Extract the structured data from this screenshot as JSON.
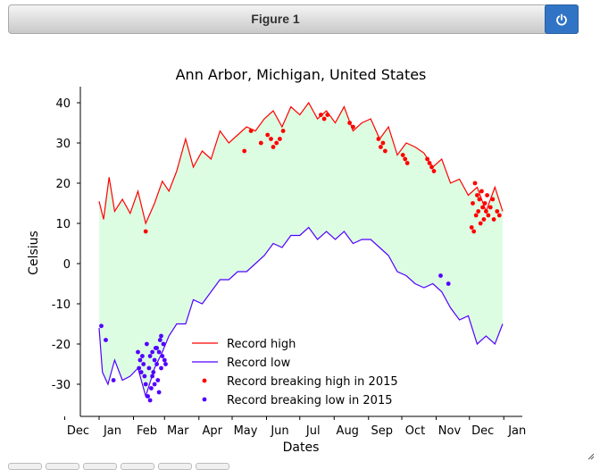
{
  "window": {
    "title": "Figure 1",
    "power_icon": "power-icon"
  },
  "chart_data": {
    "type": "line",
    "title": "Ann Arbor, Michigan, United States",
    "xlabel": "Dates",
    "ylabel": "Celsius",
    "ylim": [
      -38,
      44
    ],
    "x_domain": [
      "2015-01-01",
      "2015-12-31"
    ],
    "yticks": [
      -30,
      -20,
      -10,
      0,
      10,
      20,
      30,
      40
    ],
    "xticks": [
      "Dec",
      "Jan",
      "Feb",
      "Mar",
      "Apr",
      "May",
      "Jun",
      "Jul",
      "Aug",
      "Sep",
      "Oct",
      "Nov",
      "Dec",
      "Jan"
    ],
    "fill_color": "#ddfde3",
    "legend_position": "lower-center",
    "series": [
      {
        "name": "Record high",
        "kind": "line",
        "color": "#ff0000",
        "x": [
          "2015-01-01",
          "2015-01-05",
          "2015-01-10",
          "2015-01-15",
          "2015-01-22",
          "2015-01-29",
          "2015-02-05",
          "2015-02-12",
          "2015-02-20",
          "2015-02-27",
          "2015-03-05",
          "2015-03-12",
          "2015-03-20",
          "2015-03-27",
          "2015-04-04",
          "2015-04-12",
          "2015-04-20",
          "2015-04-28",
          "2015-05-06",
          "2015-05-14",
          "2015-05-22",
          "2015-05-30",
          "2015-06-07",
          "2015-06-15",
          "2015-06-23",
          "2015-07-01",
          "2015-07-09",
          "2015-07-17",
          "2015-07-25",
          "2015-08-02",
          "2015-08-10",
          "2015-08-18",
          "2015-08-26",
          "2015-09-03",
          "2015-09-11",
          "2015-09-19",
          "2015-09-27",
          "2015-10-05",
          "2015-10-13",
          "2015-10-21",
          "2015-10-29",
          "2015-11-06",
          "2015-11-14",
          "2015-11-22",
          "2015-11-30",
          "2015-12-08",
          "2015-12-16",
          "2015-12-24",
          "2015-12-31"
        ],
        "y": [
          15.5,
          11,
          21.5,
          13,
          16,
          12.5,
          18,
          10,
          15,
          20.5,
          18,
          23,
          31,
          24,
          28,
          26,
          33,
          30,
          32,
          34,
          33,
          36,
          38,
          34,
          39,
          37,
          40,
          36,
          38,
          35,
          39,
          33,
          35,
          36,
          31,
          34,
          27,
          30,
          29,
          27.5,
          24,
          26,
          20,
          21,
          17,
          19,
          13,
          19,
          13
        ]
      },
      {
        "name": "Record low",
        "kind": "line",
        "color": "#5200ff",
        "x": [
          "2015-01-01",
          "2015-01-04",
          "2015-01-09",
          "2015-01-15",
          "2015-01-22",
          "2015-01-29",
          "2015-02-05",
          "2015-02-12",
          "2015-02-20",
          "2015-02-27",
          "2015-03-05",
          "2015-03-12",
          "2015-03-20",
          "2015-03-27",
          "2015-04-04",
          "2015-04-12",
          "2015-04-20",
          "2015-04-28",
          "2015-05-06",
          "2015-05-14",
          "2015-05-22",
          "2015-05-30",
          "2015-06-07",
          "2015-06-15",
          "2015-06-23",
          "2015-07-01",
          "2015-07-09",
          "2015-07-17",
          "2015-07-25",
          "2015-08-02",
          "2015-08-10",
          "2015-08-18",
          "2015-08-26",
          "2015-09-03",
          "2015-09-11",
          "2015-09-19",
          "2015-09-27",
          "2015-10-05",
          "2015-10-13",
          "2015-10-21",
          "2015-10-29",
          "2015-11-06",
          "2015-11-14",
          "2015-11-22",
          "2015-11-30",
          "2015-12-08",
          "2015-12-16",
          "2015-12-24",
          "2015-12-31"
        ],
        "y": [
          -16,
          -27,
          -30,
          -24,
          -29,
          -28,
          -26,
          -33,
          -26,
          -22,
          -18,
          -15,
          -15,
          -9,
          -10,
          -7,
          -4,
          -4,
          -2,
          -2,
          0,
          2,
          5,
          4,
          7,
          7,
          9,
          6,
          8,
          6,
          8,
          5,
          6,
          6,
          4,
          2,
          -2,
          -3,
          -5,
          -6,
          -5,
          -7,
          -11,
          -14,
          -13,
          -20,
          -18,
          -20,
          -15
        ]
      },
      {
        "name": "Record breaking high in 2015",
        "kind": "scatter",
        "color": "#ff0000",
        "x": [
          "2015-02-12",
          "2015-05-12",
          "2015-05-18",
          "2015-05-27",
          "2015-06-02",
          "2015-06-05",
          "2015-06-07",
          "2015-06-10",
          "2015-06-13",
          "2015-06-16",
          "2015-07-20",
          "2015-07-23",
          "2015-07-26",
          "2015-08-15",
          "2015-08-18",
          "2015-09-10",
          "2015-09-12",
          "2015-09-14",
          "2015-09-16",
          "2015-10-02",
          "2015-10-04",
          "2015-10-06",
          "2015-10-24",
          "2015-10-26",
          "2015-10-28",
          "2015-10-30",
          "2015-12-03",
          "2015-12-04",
          "2015-12-05",
          "2015-12-06",
          "2015-12-07",
          "2015-12-08",
          "2015-12-09",
          "2015-12-10",
          "2015-12-11",
          "2015-12-12",
          "2015-12-13",
          "2015-12-14",
          "2015-12-15",
          "2015-12-16",
          "2015-12-17",
          "2015-12-18",
          "2015-12-20",
          "2015-12-22",
          "2015-12-23",
          "2015-12-26",
          "2015-12-28"
        ],
        "y": [
          8,
          28,
          33,
          30,
          32,
          31,
          29,
          30,
          31,
          33,
          37,
          36,
          37,
          35,
          34,
          31,
          29,
          30,
          28,
          27,
          26,
          25,
          26,
          25,
          24,
          23,
          9,
          15,
          8,
          20,
          12,
          17,
          13,
          16,
          10,
          18,
          14,
          11,
          15,
          13,
          17,
          12,
          14,
          16,
          11,
          13,
          12
        ]
      },
      {
        "name": "Record breaking low in 2015",
        "kind": "scatter",
        "color": "#5200ff",
        "x": [
          "2015-01-03",
          "2015-01-07",
          "2015-01-14",
          "2015-02-05",
          "2015-02-06",
          "2015-02-07",
          "2015-02-08",
          "2015-02-09",
          "2015-02-10",
          "2015-02-11",
          "2015-02-12",
          "2015-02-13",
          "2015-02-14",
          "2015-02-15",
          "2015-02-16",
          "2015-02-17",
          "2015-02-18",
          "2015-02-19",
          "2015-02-20",
          "2015-02-21",
          "2015-02-22",
          "2015-02-23",
          "2015-02-24",
          "2015-02-25",
          "2015-02-26",
          "2015-02-27",
          "2015-02-28",
          "2015-03-01",
          "2015-03-02",
          "2015-02-16",
          "2015-02-18",
          "2015-02-20",
          "2015-02-22",
          "2015-02-24",
          "2015-02-26",
          "2015-11-05",
          "2015-11-12"
        ],
        "y": [
          -15.5,
          -19,
          -29,
          -22,
          -26,
          -24,
          -27,
          -23,
          -25,
          -28,
          -30,
          -20,
          -33,
          -26,
          -23,
          -31,
          -22,
          -27,
          -24,
          -21,
          -25,
          -29,
          -22,
          -19,
          -26,
          -23,
          -20,
          -24,
          -25,
          -34,
          -28,
          -30,
          -21,
          -32,
          -18,
          -3,
          -5
        ]
      }
    ]
  }
}
